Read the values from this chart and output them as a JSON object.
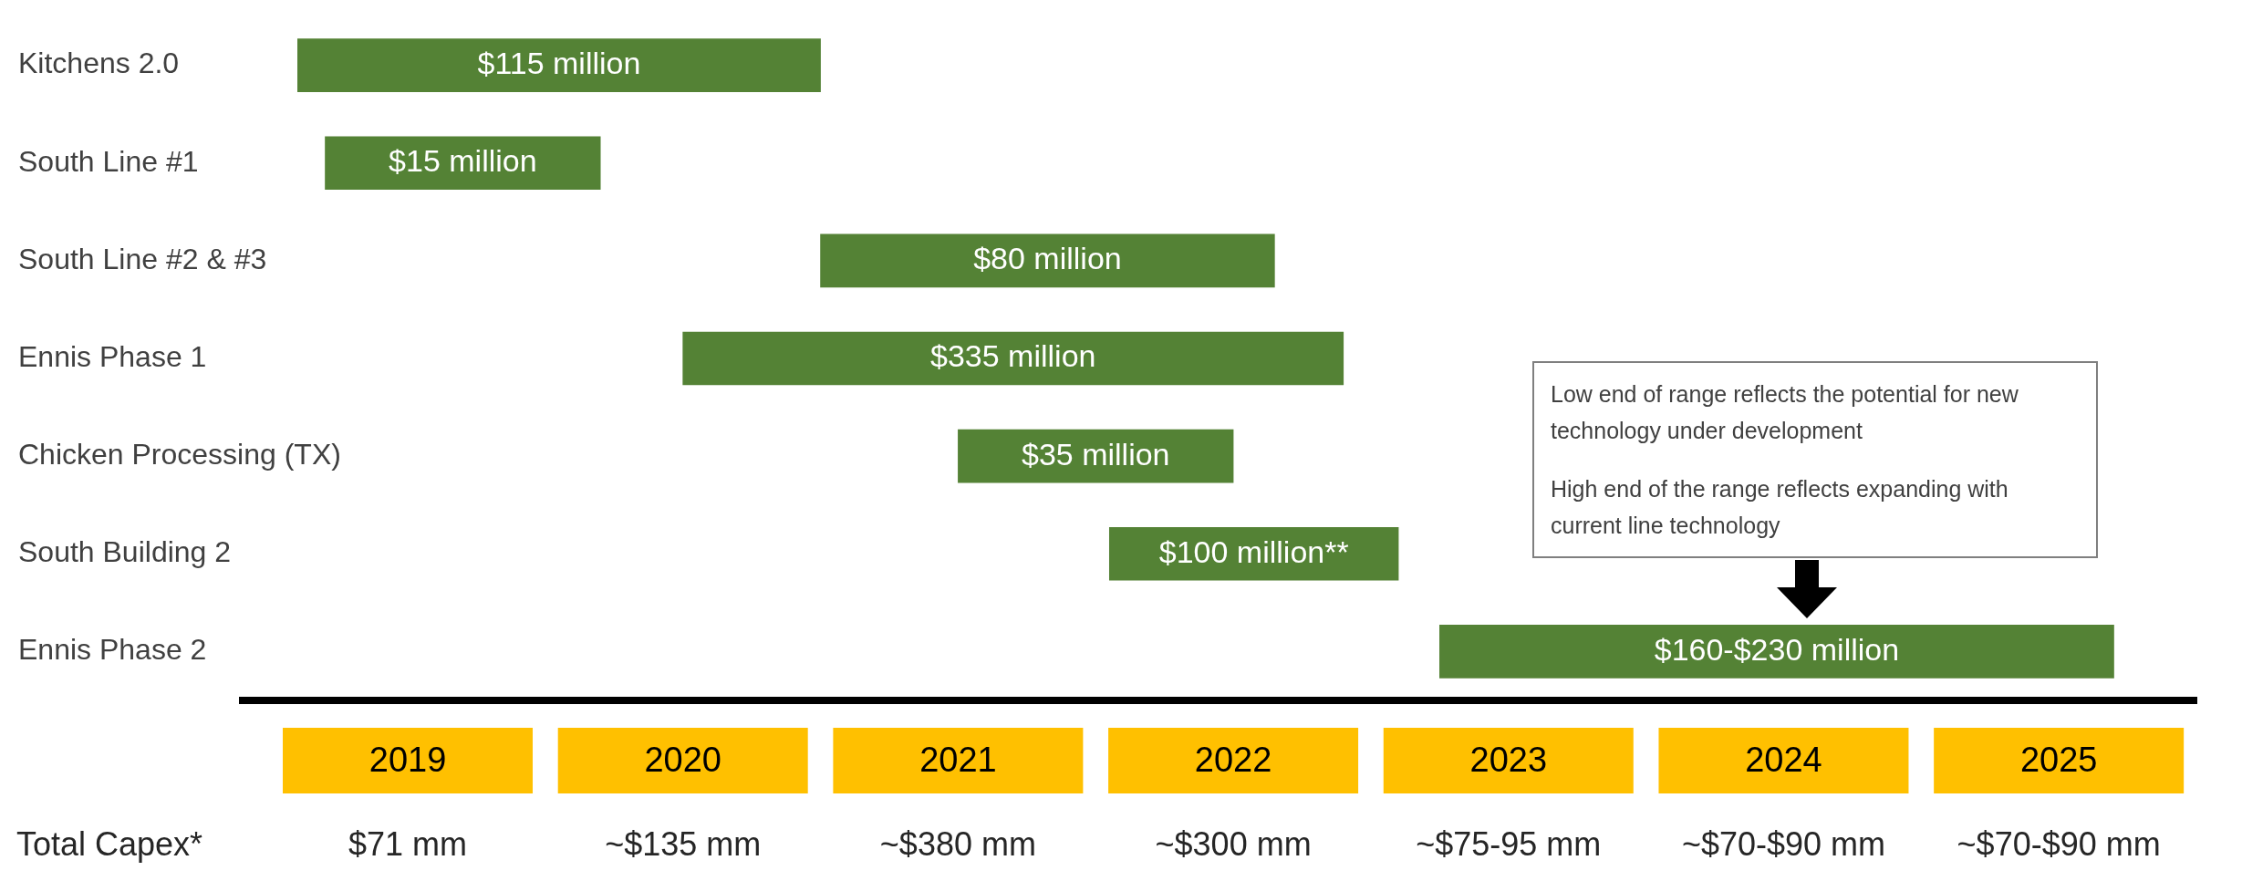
{
  "chart_data": {
    "type": "bar",
    "orientation": "horizontal",
    "categories": [
      "Kitchens 2.0",
      "South Line #1",
      "South Line #2 & #3",
      "Ennis Phase 1",
      "Chicken Processing (TX)",
      "South Building 2",
      "Ennis Phase 2"
    ],
    "base": [
      2018.6,
      2018.7,
      2020.5,
      2020.0,
      2021.0,
      2021.55,
      2022.75
    ],
    "values": [
      1.9,
      1.0,
      1.65,
      2.4,
      1.0,
      1.05,
      2.45
    ],
    "color": "#548235",
    "xlim": [
      2018.4,
      2025.5
    ],
    "xticks": [
      2019,
      2020,
      2021,
      2022,
      2023,
      2024,
      2025
    ],
    "annotations": [
      "Total Capex*",
      "$71 mm",
      "~$135 mm",
      "~$380 mm",
      "~$300 mm",
      "~$75-95 mm",
      "~$70-$90 mm",
      "~$70-$90 mm",
      "Low end of range reflects the potential for new technology under development",
      "High end of the range reflects expanding with current line technology",
      "$115 million",
      "$15 million",
      "$80 million",
      "$335 million",
      "$35 million",
      "$100 million**",
      "$160-$230 million"
    ]
  }
}
